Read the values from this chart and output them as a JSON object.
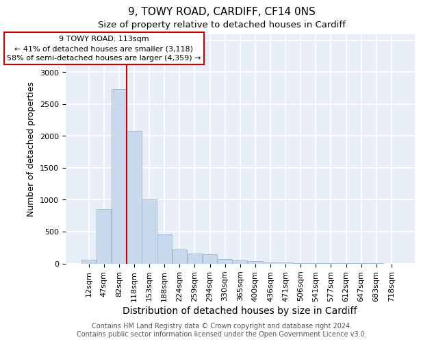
{
  "title": "9, TOWY ROAD, CARDIFF, CF14 0NS",
  "subtitle": "Size of property relative to detached houses in Cardiff",
  "xlabel": "Distribution of detached houses by size in Cardiff",
  "ylabel": "Number of detached properties",
  "categories": [
    "12sqm",
    "47sqm",
    "82sqm",
    "118sqm",
    "153sqm",
    "188sqm",
    "224sqm",
    "259sqm",
    "294sqm",
    "330sqm",
    "365sqm",
    "400sqm",
    "436sqm",
    "471sqm",
    "506sqm",
    "541sqm",
    "577sqm",
    "612sqm",
    "647sqm",
    "683sqm",
    "718sqm"
  ],
  "values": [
    55,
    850,
    2730,
    2075,
    1010,
    455,
    215,
    155,
    150,
    70,
    50,
    40,
    20,
    15,
    5,
    5,
    2,
    2,
    1,
    1,
    0
  ],
  "bar_color": "#c8d9ee",
  "bar_edge_color": "#9ab5d3",
  "vline_position": 2.5,
  "vline_color": "#cc0000",
  "annotation_text_line1": "9 TOWY ROAD: 113sqm",
  "annotation_text_line2": "← 41% of detached houses are smaller (3,118)",
  "annotation_text_line3": "58% of semi-detached houses are larger (4,359) →",
  "box_edge_color": "#cc0000",
  "box_face_color": "white",
  "ylim": [
    0,
    3600
  ],
  "yticks": [
    0,
    500,
    1000,
    1500,
    2000,
    2500,
    3000,
    3500
  ],
  "background_color": "#e8eef8",
  "grid_color": "white",
  "title_fontsize": 11,
  "subtitle_fontsize": 9.5,
  "axis_label_fontsize": 9,
  "tick_fontsize": 8,
  "footer_text": "Contains HM Land Registry data © Crown copyright and database right 2024.\nContains public sector information licensed under the Open Government Licence v3.0.",
  "footer_fontsize": 7
}
